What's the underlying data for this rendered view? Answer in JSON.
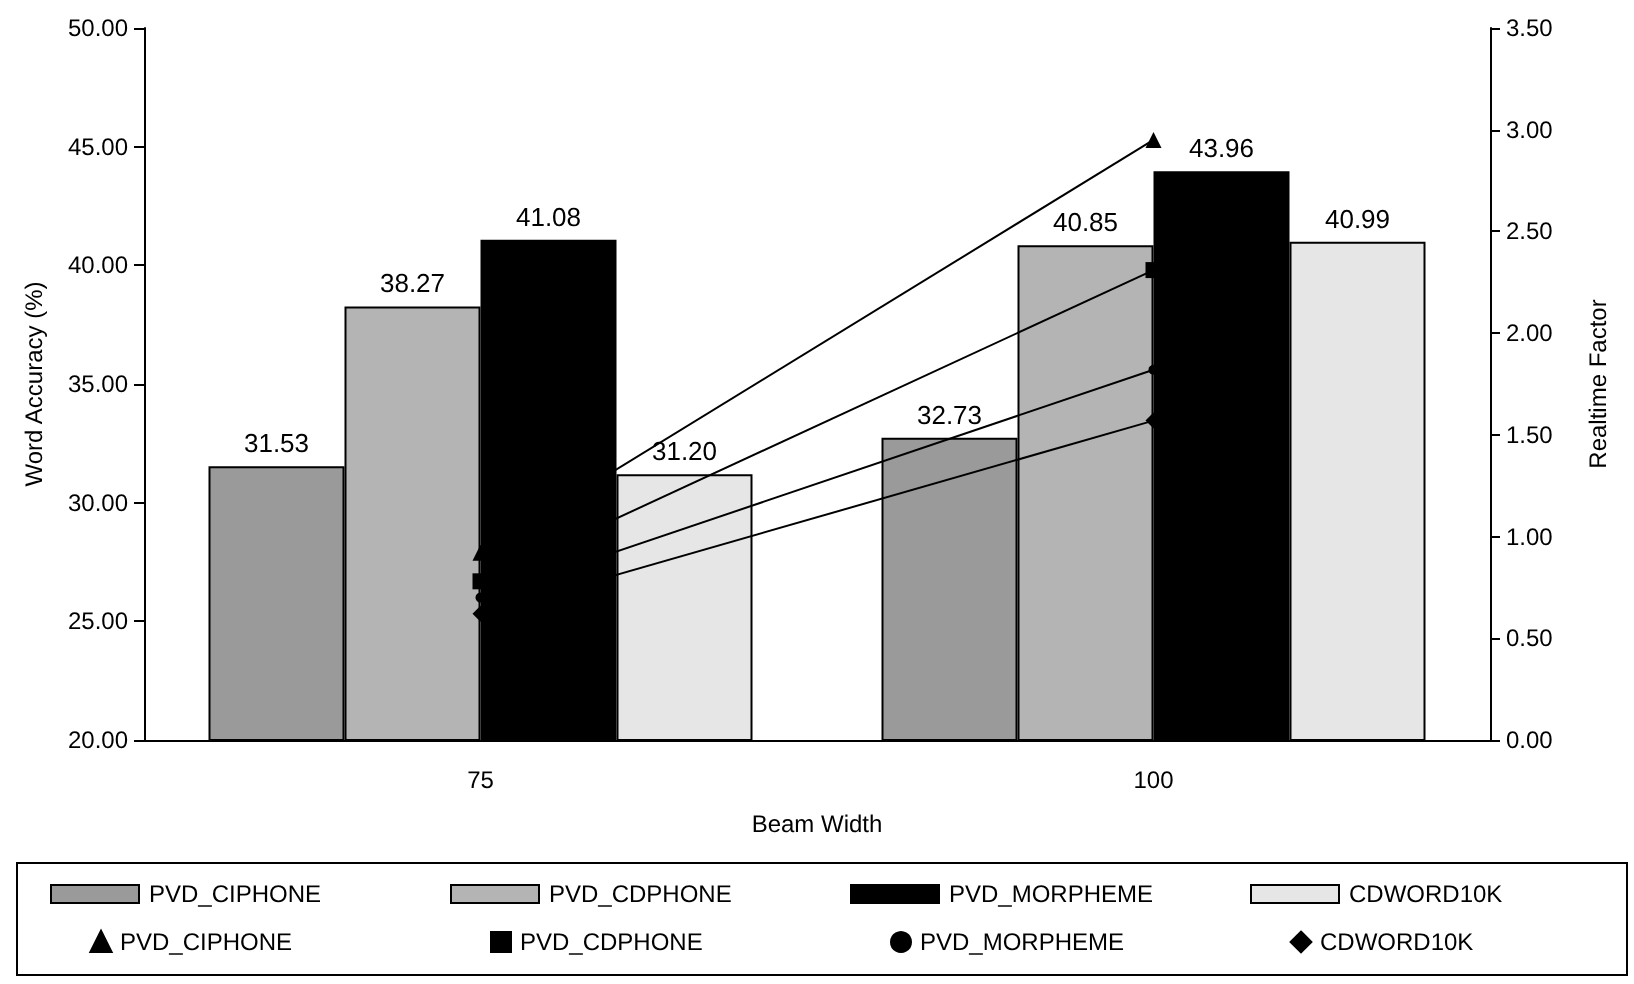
{
  "chart_data": {
    "type": "bar",
    "xlabel": "Beam Width",
    "ylabel": "Word Accuracy (%)",
    "y2label": "Realtime Factor",
    "categories": [
      "75",
      "100"
    ],
    "series": [
      {
        "name": "PVD_CIPHONE",
        "color": "#9a9a9a",
        "values": [
          31.53,
          32.73
        ],
        "data_labels": true
      },
      {
        "name": "PVD_CDPHONE",
        "color": "#b4b4b4",
        "values": [
          38.27,
          40.85
        ],
        "data_labels": true
      },
      {
        "name": "PVD_MORPHEME",
        "color": "#000000",
        "values": [
          41.08,
          43.96
        ],
        "data_labels": true
      },
      {
        "name": "CDWORD10K",
        "color": "#e6e6e6",
        "values": [
          31.2,
          40.99
        ],
        "value_labels": [
          "31.20",
          "40.99"
        ]
      },
      {
        "name": "PVD_CIPHONE",
        "type": "line",
        "axis": "y2",
        "marker": "triangle",
        "color": "#000000",
        "values": [
          0.92,
          2.95
        ]
      },
      {
        "name": "PVD_CDPHONE",
        "type": "line",
        "axis": "y2",
        "marker": "square",
        "color": "#000000",
        "values": [
          0.78,
          2.31
        ]
      },
      {
        "name": "PVD_MORPHEME",
        "type": "line",
        "axis": "y2",
        "marker": "circle",
        "color": "#000000",
        "values": [
          0.7,
          1.82
        ]
      },
      {
        "name": "CDWORD10K",
        "type": "line",
        "axis": "y2",
        "marker": "diamond",
        "color": "#000000",
        "values": [
          0.62,
          1.57
        ]
      }
    ],
    "ylim": [
      20,
      50
    ],
    "yticks": [
      {
        "value": 20,
        "label": "20.00"
      },
      {
        "value": 25,
        "label": "25.00"
      },
      {
        "value": 30,
        "label": "30.00"
      },
      {
        "value": 35,
        "label": "35.00"
      },
      {
        "value": 40,
        "label": "40.00"
      },
      {
        "value": 45,
        "label": "45.00"
      },
      {
        "value": 50,
        "label": "50.00"
      }
    ],
    "y2lim": [
      0,
      3.5
    ],
    "y2ticks": [
      {
        "value": 0,
        "label": "0.00"
      },
      {
        "value": 0.5,
        "label": "0.50"
      },
      {
        "value": 1,
        "label": "1.00"
      },
      {
        "value": 1.5,
        "label": "1.50"
      },
      {
        "value": 2,
        "label": "2.00"
      },
      {
        "value": 2.5,
        "label": "2.50"
      },
      {
        "value": 3,
        "label": "3.00"
      },
      {
        "value": 3.5,
        "label": "3.50"
      }
    ],
    "legend": "bottom"
  }
}
